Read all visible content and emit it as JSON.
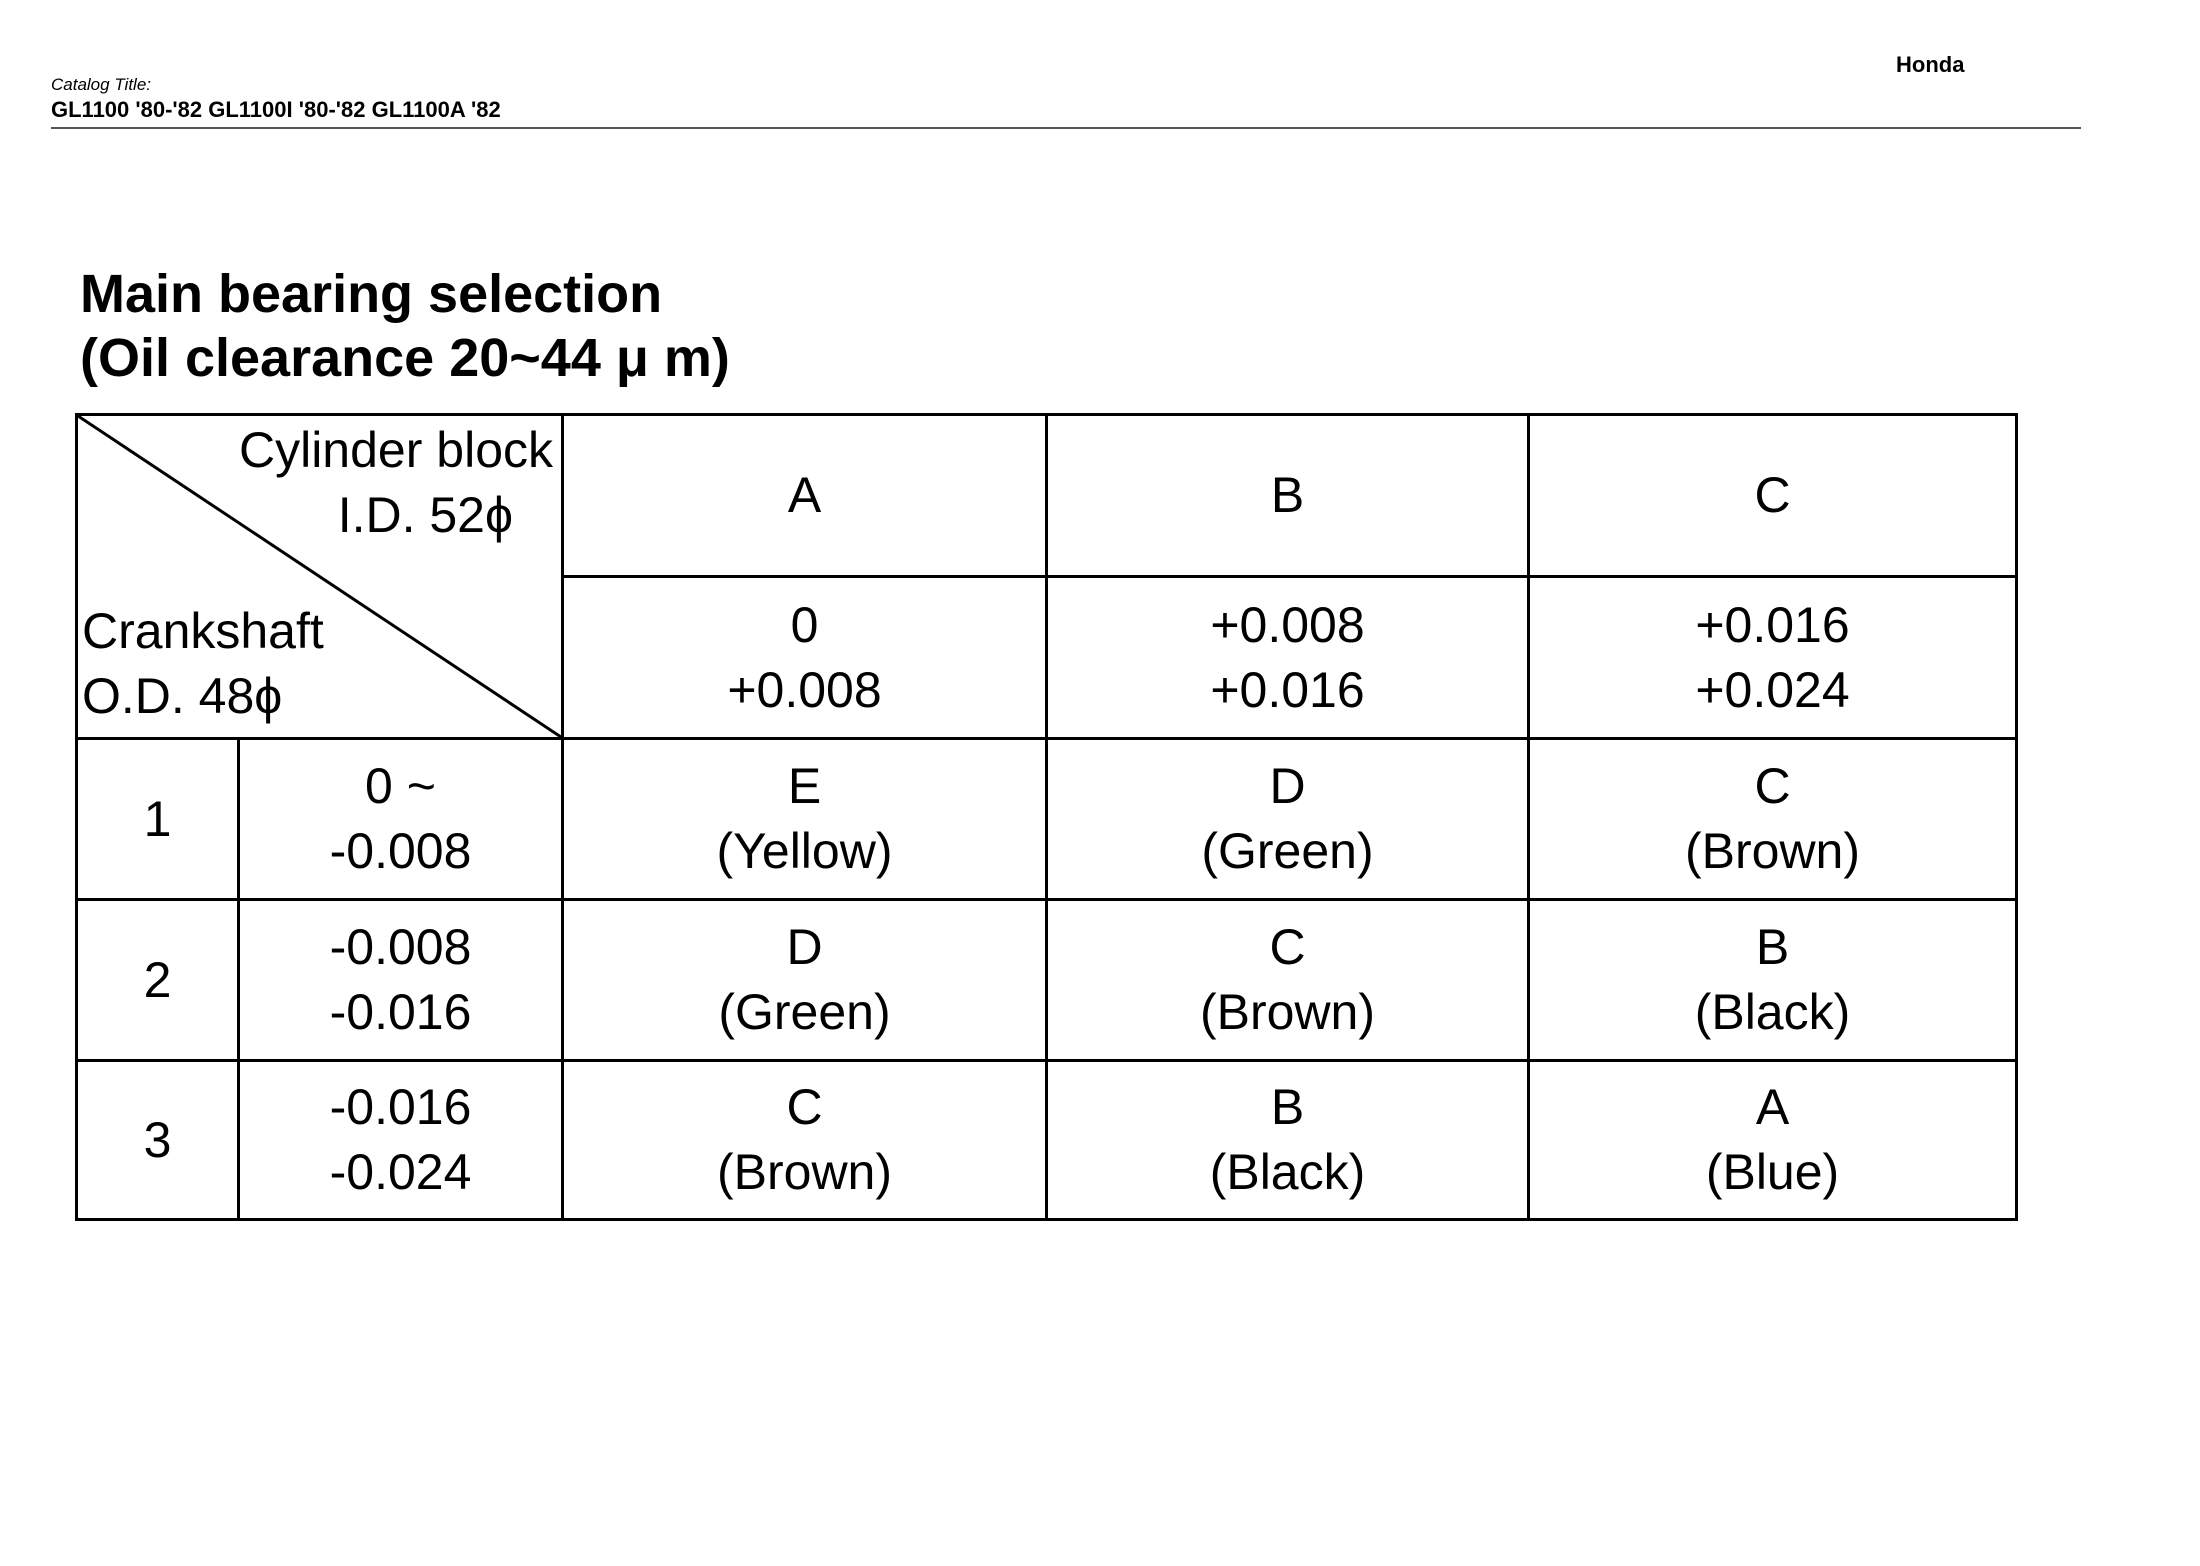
{
  "header": {
    "brand": "Honda",
    "catalog_label": "Catalog Title:",
    "catalog_title": "GL1100 '80-'82 GL1100I '80-'82 GL1100A '82"
  },
  "title": {
    "line1": "Main bearing selection",
    "line2": "(Oil clearance 20~44 μ m)"
  },
  "table": {
    "corner_top": [
      "Cylinder block",
      "I.D. 52ϕ"
    ],
    "corner_bottom": [
      "Crankshaft",
      "O.D. 48ϕ"
    ],
    "columns": [
      {
        "code": "A",
        "range": [
          "0",
          "+0.008"
        ]
      },
      {
        "code": "B",
        "range": [
          "+0.008",
          "+0.016"
        ]
      },
      {
        "code": "C",
        "range": [
          "+0.016",
          "+0.024"
        ]
      }
    ],
    "rows": [
      {
        "code": "1",
        "range": [
          "0 ~",
          "-0.008"
        ],
        "cells": [
          [
            "E",
            "(Yellow)"
          ],
          [
            "D",
            "(Green)"
          ],
          [
            "C",
            "(Brown)"
          ]
        ]
      },
      {
        "code": "2",
        "range": [
          "-0.008",
          "-0.016"
        ],
        "cells": [
          [
            "D",
            "(Green)"
          ],
          [
            "C",
            "(Brown)"
          ],
          [
            "B",
            "(Black)"
          ]
        ]
      },
      {
        "code": "3",
        "range": [
          "-0.016",
          "-0.024"
        ],
        "cells": [
          [
            "C",
            "(Brown)"
          ],
          [
            "B",
            "(Black)"
          ],
          [
            "A",
            "(Blue)"
          ]
        ]
      }
    ]
  }
}
